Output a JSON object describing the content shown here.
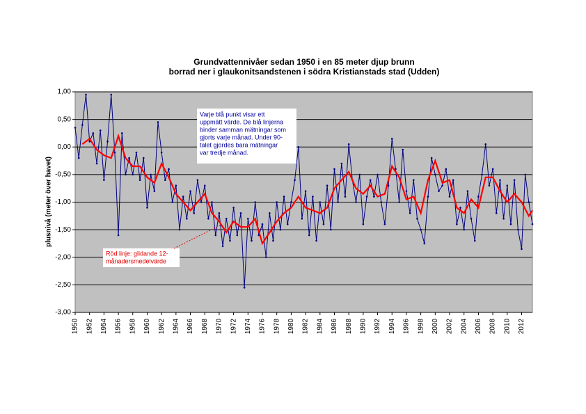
{
  "chart_data": {
    "type": "line",
    "title": [
      "Grundvattennivåer sedan 1950 i en 85 meter djup brunn",
      "borrad ner i glaukonitsandstenen i södra Kristianstads stad (Udden)"
    ],
    "y_label": "plusnivå (meter över havet)",
    "annotations": [
      {
        "lines": [
          "Varje blå punkt visar ett",
          "uppmätt värde. De blå linjerna",
          "binder samman mätningar som",
          "gjorts varje månad. Under 90-",
          "talet gjordes bara mätningar",
          "var tredje månad."
        ],
        "color": "#0000a0"
      },
      {
        "lines": [
          "Röd linje: glidande 12-",
          "månadersmedelvärde"
        ],
        "color": "#e00000"
      }
    ],
    "xlim": [
      1950,
      2013.5
    ],
    "xticks": [
      1950,
      1952,
      1954,
      1956,
      1958,
      1960,
      1962,
      1964,
      1966,
      1968,
      1970,
      1972,
      1974,
      1976,
      1978,
      1980,
      1982,
      1984,
      1986,
      1988,
      1990,
      1992,
      1994,
      1996,
      1998,
      2000,
      2002,
      2004,
      2006,
      2008,
      2010,
      2012
    ],
    "ylim": [
      -3,
      1
    ],
    "yticks": [
      {
        "value": 1,
        "label": "1,00"
      },
      {
        "value": 0.5,
        "label": "0,50"
      },
      {
        "value": 0,
        "label": "0,00"
      },
      {
        "value": -0.5,
        "label": "-0,50"
      },
      {
        "value": -1,
        "label": "-1,00"
      },
      {
        "value": -1.5,
        "label": "-1,50"
      },
      {
        "value": -2,
        "label": "-2,00"
      },
      {
        "value": -2.5,
        "label": "-2,50"
      },
      {
        "value": -3,
        "label": "-3,00"
      }
    ],
    "grid": true,
    "series": [
      {
        "color": "#000080",
        "markers": true,
        "x": [
          1950,
          1950.5,
          1951,
          1951.5,
          1952,
          1952.5,
          1953,
          1953.5,
          1954,
          1954.5,
          1955,
          1955.5,
          1956,
          1956.5,
          1957,
          1957.5,
          1958,
          1958.5,
          1959,
          1959.5,
          1960,
          1960.5,
          1961,
          1961.5,
          1962,
          1962.5,
          1963,
          1963.5,
          1964,
          1964.5,
          1965,
          1965.5,
          1966,
          1966.5,
          1967,
          1967.5,
          1968,
          1968.5,
          1969,
          1969.5,
          1970,
          1970.5,
          1971,
          1971.5,
          1972,
          1972.5,
          1973,
          1973.5,
          1974,
          1974.5,
          1975,
          1975.5,
          1976,
          1976.5,
          1977,
          1977.5,
          1978,
          1978.5,
          1979,
          1979.5,
          1980,
          1980.5,
          1981,
          1981.5,
          1982,
          1982.5,
          1983,
          1983.5,
          1984,
          1984.5,
          1985,
          1985.5,
          1986,
          1986.5,
          1987,
          1987.5,
          1988,
          1988.5,
          1989,
          1989.5,
          1990,
          1990.5,
          1991,
          1991.5,
          1992,
          1992.5,
          1993,
          1993.5,
          1994,
          1994.5,
          1995,
          1995.5,
          1996,
          1996.5,
          1997,
          1997.5,
          1998,
          1998.5,
          1999,
          1999.5,
          2000,
          2000.5,
          2001,
          2001.5,
          2002,
          2002.5,
          2003,
          2003.5,
          2004,
          2004.5,
          2005,
          2005.5,
          2006,
          2006.5,
          2007,
          2007.5,
          2008,
          2008.5,
          2009,
          2009.5,
          2010,
          2010.5,
          2011,
          2011.5,
          2012,
          2012.5,
          2013,
          2013.5
        ],
        "values": [
          0.35,
          -0.2,
          0.4,
          0.95,
          0.1,
          0.25,
          -0.3,
          0.3,
          -0.6,
          0.1,
          0.95,
          -0.1,
          -1.6,
          0.25,
          -0.5,
          -0.2,
          -0.5,
          -0.1,
          -0.6,
          -0.2,
          -1.1,
          -0.5,
          -0.8,
          0.45,
          -0.1,
          -0.6,
          -0.4,
          -1.0,
          -0.7,
          -1.5,
          -0.9,
          -1.3,
          -0.8,
          -1.2,
          -0.6,
          -1.0,
          -0.7,
          -1.3,
          -1.0,
          -1.6,
          -1.2,
          -1.8,
          -1.3,
          -1.7,
          -1.1,
          -1.6,
          -1.2,
          -2.55,
          -1.3,
          -1.7,
          -1.0,
          -1.6,
          -1.4,
          -2.0,
          -1.2,
          -1.7,
          -1.0,
          -1.5,
          -0.9,
          -1.4,
          -1.0,
          -0.6,
          0.0,
          -1.3,
          -0.8,
          -1.6,
          -0.9,
          -1.7,
          -1.0,
          -1.4,
          -0.7,
          -1.5,
          -0.4,
          -1.0,
          -0.3,
          -0.9,
          0.05,
          -0.6,
          -1.0,
          -0.5,
          -1.4,
          -0.9,
          -0.6,
          -0.9,
          -0.5,
          -1.0,
          -1.4,
          -0.7,
          0.15,
          -0.4,
          -1.0,
          -0.05,
          -0.8,
          -1.2,
          -0.6,
          -1.3,
          -1.5,
          -1.75,
          -0.9,
          -0.2,
          -0.5,
          -0.8,
          -0.7,
          -0.4,
          -0.9,
          -0.6,
          -1.4,
          -1.1,
          -1.5,
          -0.8,
          -1.3,
          -1.7,
          -0.9,
          -0.5,
          0.05,
          -0.7,
          -0.4,
          -1.2,
          -0.6,
          -1.3,
          -0.7,
          -1.4,
          -0.6,
          -1.5,
          -1.85,
          -0.5,
          -1.0,
          -1.4
        ]
      },
      {
        "color": "#ff0000",
        "markers": false,
        "x": [
          1951,
          1952,
          1953,
          1954,
          1955,
          1956,
          1957,
          1958,
          1959,
          1960,
          1961,
          1962,
          1963,
          1964,
          1965,
          1966,
          1967,
          1968,
          1969,
          1970,
          1971,
          1972,
          1973,
          1974,
          1975,
          1976,
          1977,
          1978,
          1979,
          1980,
          1981,
          1982,
          1983,
          1984,
          1985,
          1986,
          1987,
          1988,
          1989,
          1990,
          1991,
          1992,
          1993,
          1994,
          1995,
          1996,
          1997,
          1998,
          1999,
          2000,
          2001,
          2002,
          2003,
          2004,
          2005,
          2006,
          2007,
          2008,
          2009,
          2010,
          2011,
          2012,
          2013,
          2013.5
        ],
        "values": [
          0.05,
          0.15,
          -0.05,
          -0.15,
          -0.2,
          0.2,
          -0.2,
          -0.35,
          -0.35,
          -0.55,
          -0.65,
          -0.3,
          -0.55,
          -0.85,
          -1.0,
          -1.15,
          -1.0,
          -0.85,
          -1.2,
          -1.35,
          -1.55,
          -1.35,
          -1.45,
          -1.45,
          -1.3,
          -1.75,
          -1.55,
          -1.35,
          -1.2,
          -1.1,
          -0.9,
          -1.1,
          -1.15,
          -1.2,
          -1.1,
          -0.75,
          -0.6,
          -0.45,
          -0.75,
          -0.85,
          -0.7,
          -0.9,
          -0.85,
          -0.35,
          -0.55,
          -0.95,
          -0.9,
          -1.2,
          -0.6,
          -0.25,
          -0.65,
          -0.6,
          -1.1,
          -1.2,
          -0.95,
          -1.1,
          -0.55,
          -0.55,
          -0.8,
          -1.0,
          -0.85,
          -1.0,
          -1.25,
          -1.15
        ]
      }
    ]
  }
}
